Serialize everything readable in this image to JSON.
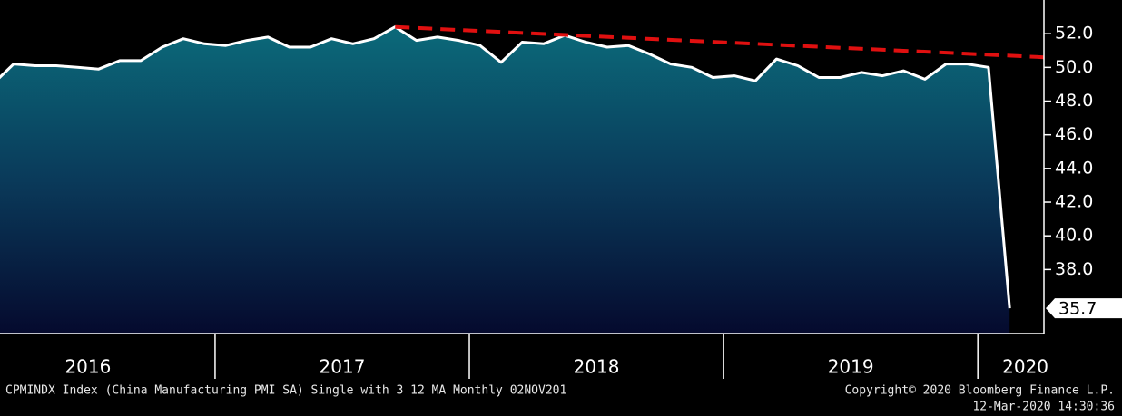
{
  "chart_data": {
    "type": "area",
    "series": [
      {
        "color": "#ffffff",
        "x": [
          2016.125,
          2016.208,
          2016.292,
          2016.375,
          2016.458,
          2016.542,
          2016.625,
          2016.708,
          2016.792,
          2016.875,
          2016.958,
          2017.042,
          2017.125,
          2017.208,
          2017.292,
          2017.375,
          2017.458,
          2017.542,
          2017.625,
          2017.708,
          2017.792,
          2017.875,
          2017.958,
          2018.042,
          2018.125,
          2018.208,
          2018.292,
          2018.375,
          2018.458,
          2018.542,
          2018.625,
          2018.708,
          2018.792,
          2018.875,
          2018.958,
          2019.042,
          2019.125,
          2019.208,
          2019.292,
          2019.375,
          2019.458,
          2019.542,
          2019.625,
          2019.708,
          2019.792,
          2019.875,
          2019.958,
          2020.042,
          2020.125
        ],
        "values": [
          49.0,
          50.2,
          50.1,
          50.1,
          50.0,
          49.9,
          50.4,
          50.4,
          51.2,
          51.7,
          51.4,
          51.3,
          51.6,
          51.8,
          51.2,
          51.2,
          51.7,
          51.4,
          51.7,
          52.4,
          51.6,
          51.8,
          51.6,
          51.3,
          50.3,
          51.5,
          51.4,
          51.9,
          51.5,
          51.2,
          51.3,
          50.8,
          50.2,
          50.0,
          49.4,
          49.5,
          49.2,
          50.5,
          50.1,
          49.4,
          49.4,
          49.7,
          49.5,
          49.8,
          49.3,
          50.2,
          50.2,
          50.0,
          35.7
        ]
      }
    ],
    "trendline": {
      "color": "#e01010",
      "x": [
        2017.708,
        2020.26
      ],
      "values": [
        52.4,
        50.6
      ]
    },
    "xlim": [
      2016.154,
      2020.26
    ],
    "xticks": [
      2017,
      2018,
      2019,
      2020
    ],
    "year_labels": [
      "2016",
      "2017",
      "2018",
      "2019",
      "2020"
    ],
    "ylim": [
      34.2,
      54.0
    ],
    "yticks": [
      {
        "value": 38,
        "label": "38.0"
      },
      {
        "value": 40,
        "label": "40.0"
      },
      {
        "value": 42,
        "label": "42.0"
      },
      {
        "value": 44,
        "label": "44.0"
      },
      {
        "value": 46,
        "label": "46.0"
      },
      {
        "value": 48,
        "label": "48.0"
      },
      {
        "value": 50,
        "label": "50.0"
      },
      {
        "value": 52,
        "label": "52.0"
      }
    ],
    "footer_left": "CPMINDX Index (China Manufacturing PMI SA) Single with 3 12 MA  Monthly 02NOV201",
    "footer_right": "Copyright© 2020 Bloomberg Finance L.P.",
    "footer_time": "12-Mar-2020 14:30:36"
  }
}
